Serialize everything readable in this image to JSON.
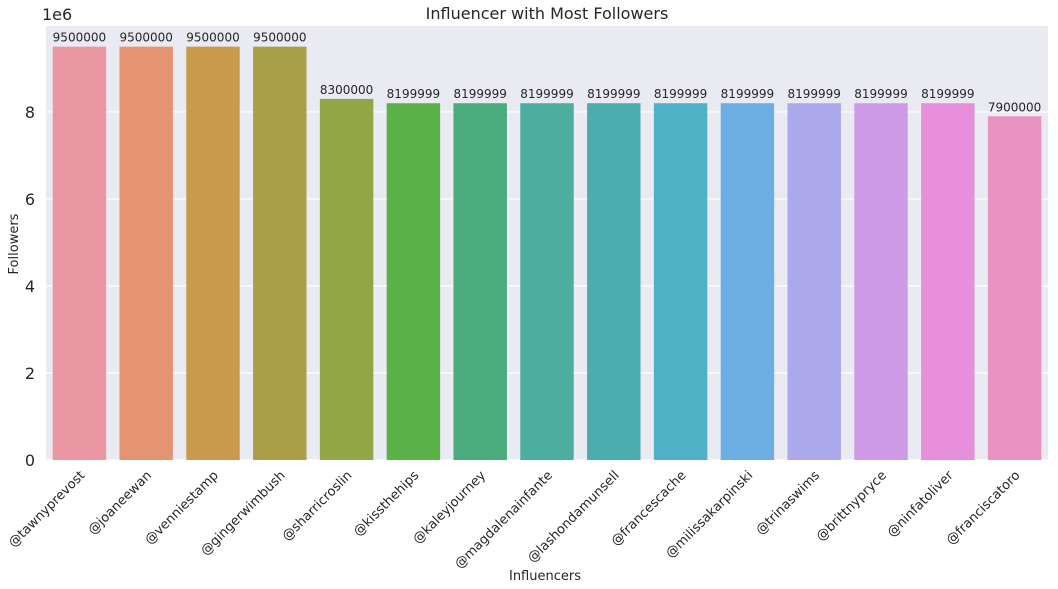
{
  "chart_data": {
    "type": "bar",
    "title": "Influencer with Most Followers",
    "xlabel": "Influencers",
    "ylabel": "Followers",
    "y_scale_label": "1e6",
    "ylim": [
      0,
      9975000
    ],
    "yticks": [
      0,
      2000000,
      4000000,
      6000000,
      8000000
    ],
    "ytick_labels": [
      "0",
      "2",
      "4",
      "6",
      "8"
    ],
    "grid": true,
    "categories": [
      "@tawnyprevost",
      "@joaneewan",
      "@venniestamp",
      "@gingerwimbush",
      "@sharricroslin",
      "@kissthehips",
      "@kaleyjourney",
      "@magdalenainfante",
      "@lashondamunsell",
      "@francescache",
      "@milissakarpinski",
      "@trinaswims",
      "@brittnypryce",
      "@ninfatoliver",
      "@franciscatoro"
    ],
    "values": [
      9500000,
      9500000,
      9500000,
      9500000,
      8300000,
      8199999,
      8199999,
      8199999,
      8199999,
      8199999,
      8199999,
      8199999,
      8199999,
      8199999,
      7900000
    ],
    "data_labels": [
      "9500000",
      "9500000",
      "9500000",
      "9500000",
      "8300000",
      "8199999",
      "8199999",
      "8199999",
      "8199999",
      "8199999",
      "8199999",
      "8199999",
      "8199999",
      "8199999",
      "7900000"
    ],
    "colors": [
      "#ea96a3",
      "#e59472",
      "#c99a4b",
      "#aa9e47",
      "#92a645",
      "#5bb249",
      "#4aac7d",
      "#4bae9f",
      "#4cadaf",
      "#4fb0c6",
      "#6caee1",
      "#aca8ec",
      "#cf9ae8",
      "#e88fdc",
      "#ea92c2"
    ],
    "plot_background": "#eaeaf2",
    "grid_color": "#ffffff"
  }
}
